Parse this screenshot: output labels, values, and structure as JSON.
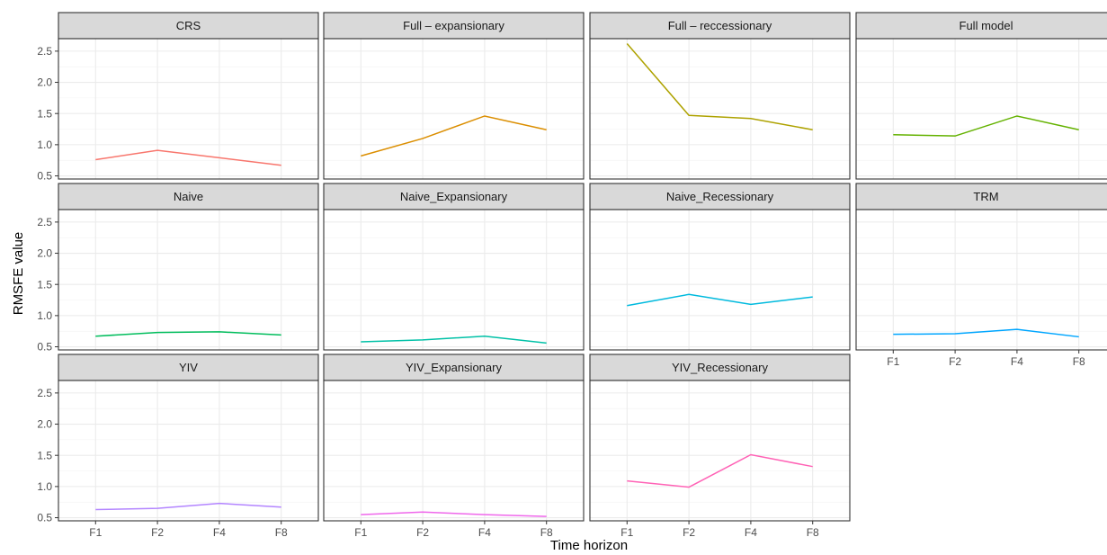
{
  "chart_data": {
    "type": "line",
    "xlabel": "Time horizon",
    "ylabel": "RMSFE value",
    "categories": [
      "F1",
      "F2",
      "F4",
      "F8"
    ],
    "ylim": [
      0.45,
      2.7
    ],
    "yticks": [
      0.5,
      1.0,
      1.5,
      2.0,
      2.5
    ],
    "ytick_labels": [
      "0.5",
      "1.0",
      "1.5",
      "2.0",
      "2.5"
    ],
    "grid": true,
    "facets": [
      {
        "name": "CRS",
        "color": "#F8766D",
        "values": [
          0.76,
          0.91,
          0.79,
          0.67
        ]
      },
      {
        "name": "Full – expansionary",
        "color": "#DB8E00",
        "values": [
          0.82,
          1.1,
          1.46,
          1.24
        ]
      },
      {
        "name": "Full – reccessionary",
        "color": "#AEA200",
        "values": [
          2.62,
          1.47,
          1.42,
          1.24
        ]
      },
      {
        "name": "Full model",
        "color": "#64B200",
        "values": [
          1.16,
          1.14,
          1.46,
          1.24
        ]
      },
      {
        "name": "Naive",
        "color": "#00BD5C",
        "values": [
          0.67,
          0.73,
          0.74,
          0.69
        ]
      },
      {
        "name": "Naive_Expansionary",
        "color": "#00C1A7",
        "values": [
          0.58,
          0.61,
          0.67,
          0.56
        ]
      },
      {
        "name": "Naive_Recessionary",
        "color": "#00BADE",
        "values": [
          1.16,
          1.34,
          1.18,
          1.3
        ]
      },
      {
        "name": "TRM",
        "color": "#00A6FF",
        "values": [
          0.7,
          0.71,
          0.78,
          0.66
        ]
      },
      {
        "name": "YIV",
        "color": "#B385FF",
        "values": [
          0.63,
          0.65,
          0.73,
          0.67
        ]
      },
      {
        "name": "YIV_Expansionary",
        "color": "#EF67EB",
        "values": [
          0.55,
          0.59,
          0.55,
          0.52
        ]
      },
      {
        "name": "YIV_Recessionary",
        "color": "#FF63B6",
        "values": [
          1.09,
          0.99,
          1.51,
          1.32
        ]
      }
    ]
  }
}
